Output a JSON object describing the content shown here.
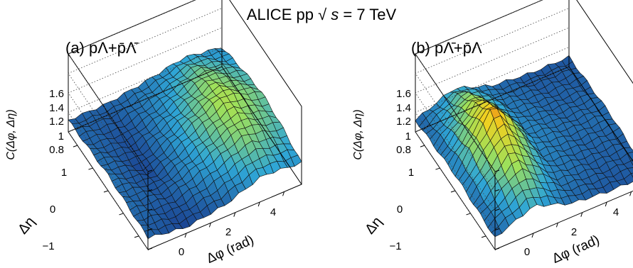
{
  "header": {
    "title_prefix": "ALICE pp ",
    "sqrt_symbol": "√",
    "sqrt_var": "s",
    "title_suffix": " = 7 TeV"
  },
  "colors": {
    "low": "#1a3f8f",
    "mid": "#2fa6d6",
    "midhigh": "#9ee05a",
    "high": "#f0d020",
    "peak": "#e85a10",
    "mesh": "#111111",
    "frame": "#000000",
    "gridline": "#444444"
  },
  "chart_data": [
    {
      "type": "surface",
      "panel_label": "(a) pΛ+p̄Λ̄",
      "z_title": "C(Δφ, Δη)",
      "x_title": "Δφ (rad)",
      "y_title": "Δη",
      "zlim": [
        0.8,
        1.6
      ],
      "z_ticks": [
        "0.8",
        "1",
        "1.2",
        "1.4",
        "1.6"
      ],
      "y_ticks": [
        "−1",
        "0",
        "1"
      ],
      "x_ticks": [
        "0",
        "2",
        "4"
      ],
      "xlim": [
        -1.57,
        4.71
      ],
      "ylim": [
        -1.3,
        1.3
      ],
      "grid": true,
      "surface": {
        "eta_nodes": [
          -1.3,
          -0.65,
          0,
          0.65,
          1.3
        ],
        "phi_nodes": [
          -1.57,
          0,
          1.57,
          3.14,
          4.71
        ],
        "z": [
          [
            0.92,
            0.86,
            0.92,
            1.06,
            1.02
          ],
          [
            0.94,
            0.9,
            1.05,
            1.22,
            1.1
          ],
          [
            0.96,
            0.86,
            1.08,
            1.28,
            1.14
          ],
          [
            0.94,
            0.88,
            1.02,
            1.2,
            1.08
          ],
          [
            0.92,
            0.92,
            0.98,
            1.06,
            1.0
          ]
        ]
      }
    },
    {
      "type": "surface",
      "panel_label": "(b) pΛ̄+p̄Λ",
      "z_title": "C(Δφ, Δη)",
      "x_title": "Δφ (rad)",
      "y_title": "Δη",
      "zlim": [
        0.8,
        1.6
      ],
      "z_ticks": [
        "0.8",
        "1",
        "1.2",
        "1.4",
        "1.6"
      ],
      "y_ticks": [
        "−1",
        "0",
        "1"
      ],
      "x_ticks": [
        "0",
        "2",
        "4"
      ],
      "xlim": [
        -1.57,
        4.71
      ],
      "ylim": [
        -1.3,
        1.3
      ],
      "grid": true,
      "surface": {
        "eta_nodes": [
          -1.3,
          -0.65,
          0,
          0.65,
          1.3
        ],
        "phi_nodes": [
          -1.57,
          0,
          1.57,
          3.14,
          4.71
        ],
        "z": [
          [
            0.92,
            1.08,
            0.94,
            0.9,
            0.9
          ],
          [
            0.94,
            1.3,
            0.98,
            0.92,
            0.92
          ],
          [
            0.96,
            1.52,
            1.0,
            0.94,
            0.94
          ],
          [
            0.94,
            1.3,
            0.98,
            0.92,
            0.92
          ],
          [
            0.92,
            1.08,
            0.94,
            0.9,
            0.9
          ]
        ]
      }
    }
  ]
}
